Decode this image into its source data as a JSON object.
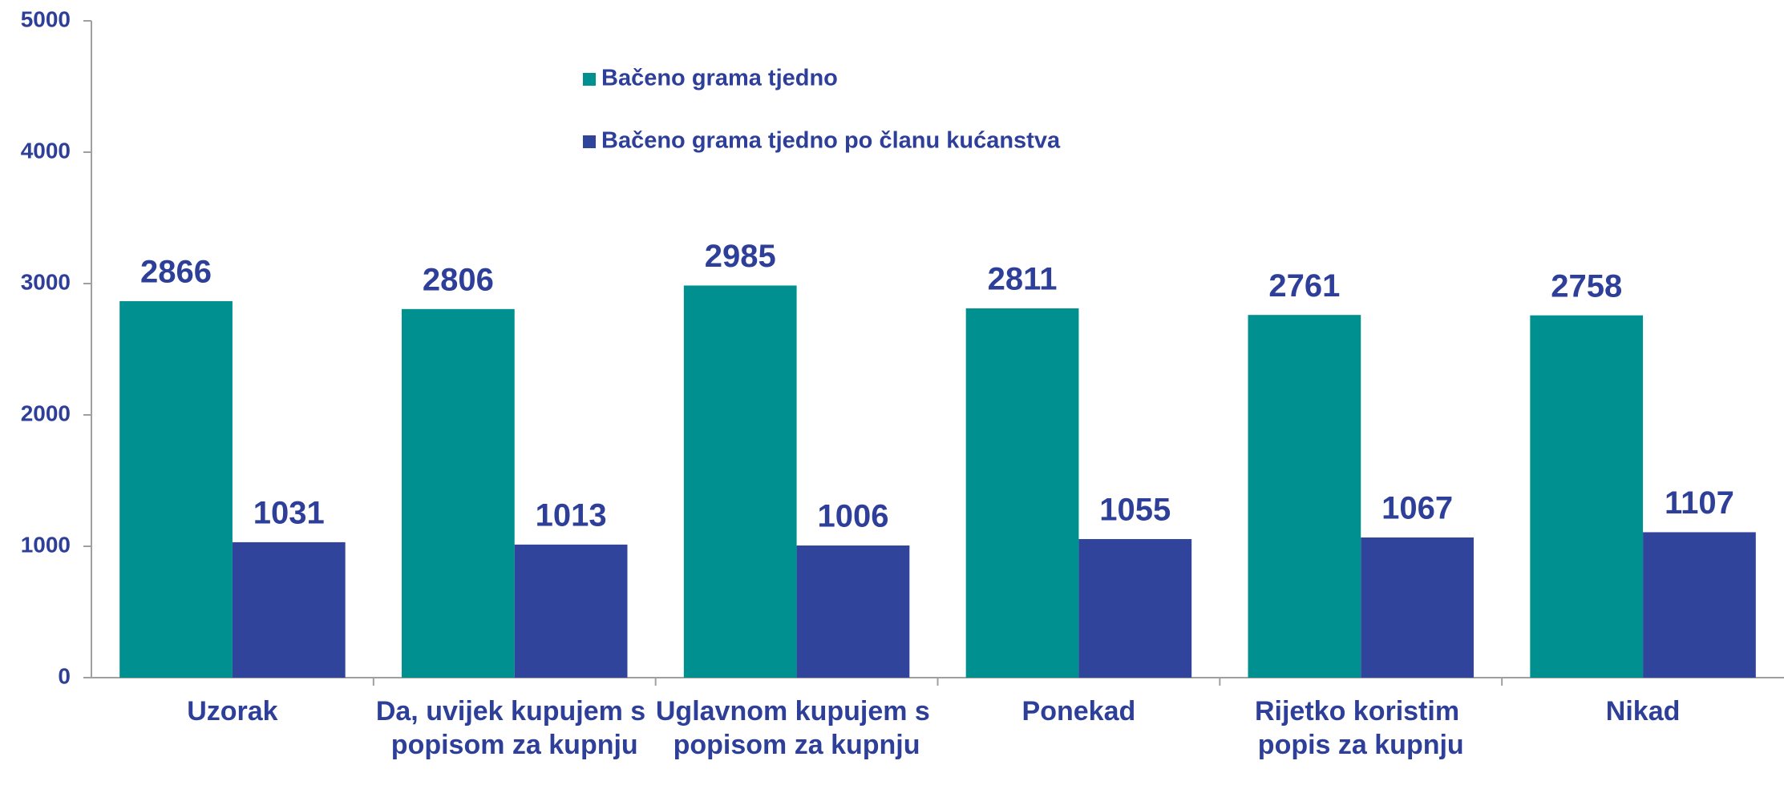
{
  "chart_data": {
    "type": "bar",
    "categories": [
      "Uzorak",
      "Da, uvijek kupujem s popisom za kupnju",
      "Uglavnom kupujem s popisom za kupnju",
      "Ponekad",
      "Rijetko koristim popis za kupnju",
      "Nikad"
    ],
    "series": [
      {
        "name": "Bačeno grama tjedno",
        "color": "#009090",
        "values": [
          2866,
          2806,
          2985,
          2811,
          2761,
          2758
        ]
      },
      {
        "name": "Bačeno grama tjedno po članu kućanstva",
        "color": "#31449c",
        "values": [
          1031,
          1013,
          1006,
          1055,
          1067,
          1107
        ]
      }
    ],
    "ylim": [
      0,
      5000
    ],
    "yticks": [
      0,
      1000,
      2000,
      3000,
      4000,
      5000
    ],
    "grid": false
  }
}
